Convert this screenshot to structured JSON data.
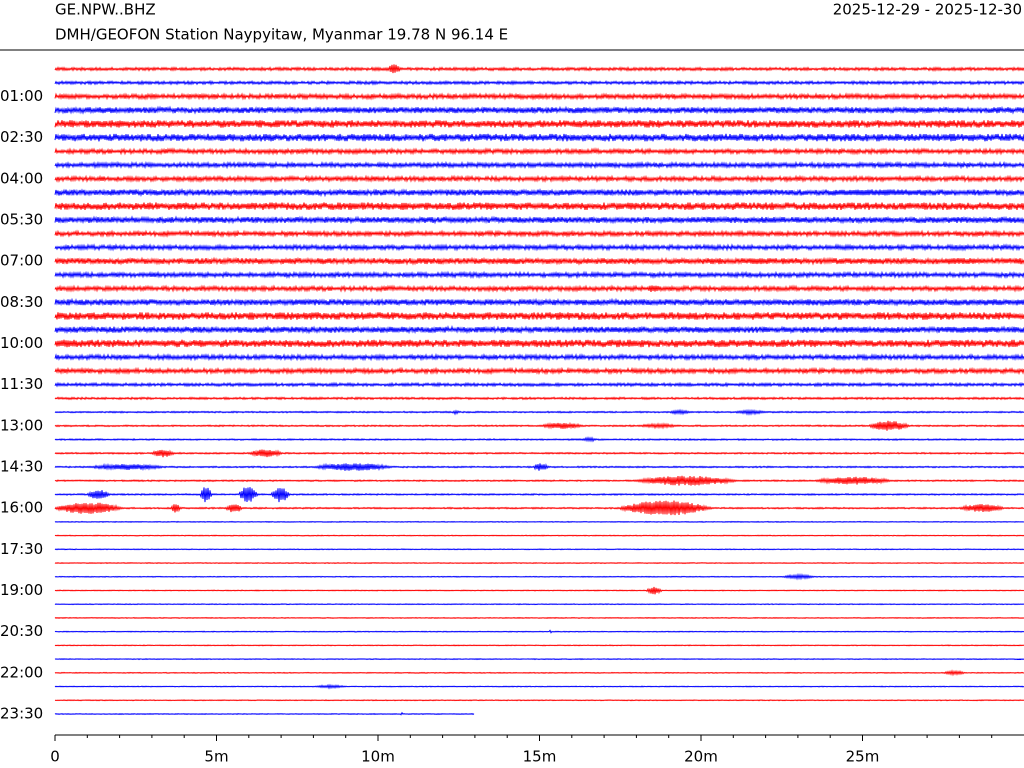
{
  "chart_data": {
    "type": "helicorder",
    "title": "GE.NPW..BHZ",
    "subtitle": "DMH/GEOFON Station Naypyitaw, Myanmar  19.78 N 96.14 E",
    "date_range": "2025-12-29 - 2025-12-30",
    "colors": [
      "#ff0000",
      "#0000ff"
    ],
    "xlim": [
      0,
      30
    ],
    "xticks": [
      0,
      {
        "value": 5,
        "label": "5m"
      },
      {
        "value": 10,
        "label": "10m"
      },
      {
        "value": 15,
        "label": "15m"
      },
      {
        "value": 20,
        "label": "20m"
      },
      {
        "value": 25,
        "label": "25m"
      }
    ],
    "xminorticks": [
      1,
      2,
      3,
      4,
      6,
      7,
      8,
      9,
      11,
      12,
      13,
      14,
      16,
      17,
      18,
      19,
      21,
      22,
      23,
      24,
      26,
      27,
      28,
      29
    ],
    "yticks": [
      {
        "value": 2,
        "label": "01:00"
      },
      {
        "value": 5,
        "label": "02:30"
      },
      {
        "value": 8,
        "label": "04:00"
      },
      {
        "value": 11,
        "label": "05:30"
      },
      {
        "value": 14,
        "label": "07:00"
      },
      {
        "value": 17,
        "label": "08:30"
      },
      {
        "value": 20,
        "label": "10:00"
      },
      {
        "value": 23,
        "label": "11:30"
      },
      {
        "value": 26,
        "label": "13:00"
      },
      {
        "value": 29,
        "label": "14:30"
      },
      {
        "value": 32,
        "label": "16:00"
      },
      {
        "value": 35,
        "label": "17:30"
      },
      {
        "value": 38,
        "label": "19:00"
      },
      {
        "value": 41,
        "label": "20:30"
      },
      {
        "value": 44,
        "label": "22:00"
      },
      {
        "value": 47,
        "label": "23:30"
      }
    ],
    "rows": [
      {
        "noise": 1,
        "events": [
          [
            10.3,
            10.9,
            5
          ]
        ]
      },
      {
        "noise": 1,
        "events": []
      },
      {
        "noise": 1.5,
        "events": []
      },
      {
        "noise": 2,
        "events": [
          [
            26.8,
            27.5,
            3
          ]
        ]
      },
      {
        "noise": 2.5,
        "events": [
          [
            1.5,
            3,
            3
          ]
        ]
      },
      {
        "noise": 2.5,
        "events": []
      },
      {
        "noise": 1.5,
        "events": []
      },
      {
        "noise": 1.5,
        "events": []
      },
      {
        "noise": 1.5,
        "events": [
          [
            9.8,
            10.1,
            3
          ]
        ]
      },
      {
        "noise": 2,
        "events": [
          [
            23,
            30,
            3
          ]
        ]
      },
      {
        "noise": 2.5,
        "events": [
          [
            5.3,
            7,
            3
          ],
          [
            9.6,
            11,
            3
          ]
        ]
      },
      {
        "noise": 2,
        "events": []
      },
      {
        "noise": 1.5,
        "events": []
      },
      {
        "noise": 1.5,
        "events": []
      },
      {
        "noise": 2,
        "events": [
          [
            13.5,
            15,
            3
          ],
          [
            21,
            23,
            3
          ],
          [
            27,
            30,
            3
          ]
        ]
      },
      {
        "noise": 1.5,
        "events": []
      },
      {
        "noise": 1.5,
        "events": [
          [
            18.3,
            19,
            4
          ]
        ]
      },
      {
        "noise": 2,
        "events": [
          [
            28.5,
            30,
            3
          ]
        ]
      },
      {
        "noise": 2.5,
        "events": [
          [
            7,
            8,
            3
          ]
        ]
      },
      {
        "noise": 2,
        "events": [
          [
            27,
            30,
            3
          ]
        ]
      },
      {
        "noise": 2.5,
        "events": [
          [
            0,
            1,
            4
          ]
        ]
      },
      {
        "noise": 1.5,
        "events": []
      },
      {
        "noise": 1.5,
        "events": []
      },
      {
        "noise": 1,
        "events": []
      },
      {
        "noise": 0.7,
        "events": []
      },
      {
        "noise": 0.5,
        "events": [
          [
            12.3,
            12.6,
            2
          ],
          [
            19,
            20,
            2
          ],
          [
            21,
            22.5,
            2
          ]
        ]
      },
      {
        "noise": 0.5,
        "events": [
          [
            15,
            17,
            3
          ],
          [
            18,
            20,
            2
          ],
          [
            25.2,
            27,
            5
          ]
        ]
      },
      {
        "noise": 0.5,
        "events": [
          [
            16.3,
            17,
            2
          ]
        ]
      },
      {
        "noise": 0.5,
        "events": [
          [
            3,
            4,
            4
          ],
          [
            6,
            7.5,
            4
          ]
        ]
      },
      {
        "noise": 0.5,
        "events": [
          [
            1,
            4.5,
            3
          ],
          [
            8,
            11.5,
            4
          ],
          [
            14.8,
            15.5,
            4
          ]
        ]
      },
      {
        "noise": 0.5,
        "events": [
          [
            18,
            22.5,
            5
          ],
          [
            23.5,
            27,
            4
          ]
        ]
      },
      {
        "noise": 0.5,
        "events": [
          [
            1,
            2,
            5
          ],
          [
            4.5,
            5,
            9
          ],
          [
            5.7,
            6.5,
            9
          ],
          [
            6.7,
            7.5,
            8
          ]
        ]
      },
      {
        "noise": 0.5,
        "events": [
          [
            0,
            3,
            6
          ],
          [
            3.6,
            4,
            6
          ],
          [
            5.3,
            6,
            5
          ],
          [
            17.5,
            21.5,
            8
          ],
          [
            28,
            30,
            4
          ]
        ]
      },
      {
        "noise": 0.3,
        "events": []
      },
      {
        "noise": 0.3,
        "events": []
      },
      {
        "noise": 0.3,
        "events": []
      },
      {
        "noise": 0.3,
        "events": []
      },
      {
        "noise": 0.3,
        "events": [
          [
            22.5,
            24,
            2
          ]
        ]
      },
      {
        "noise": 0.3,
        "events": [
          [
            18.3,
            19,
            4
          ]
        ]
      },
      {
        "noise": 0.3,
        "events": []
      },
      {
        "noise": 0.3,
        "events": []
      },
      {
        "noise": 0.3,
        "events": [
          [
            15.3,
            15.4,
            2
          ]
        ]
      },
      {
        "noise": 0.3,
        "events": []
      },
      {
        "noise": 0.3,
        "events": []
      },
      {
        "noise": 0.3,
        "events": [
          [
            27.5,
            28.5,
            2
          ]
        ]
      },
      {
        "noise": 0.3,
        "events": [
          [
            8,
            9.5,
            1.5
          ]
        ]
      },
      {
        "noise": 0.3,
        "events": []
      },
      {
        "noise": 0.3,
        "events": [
          [
            10.7,
            10.8,
            1.5
          ]
        ],
        "end": 13
      }
    ]
  }
}
